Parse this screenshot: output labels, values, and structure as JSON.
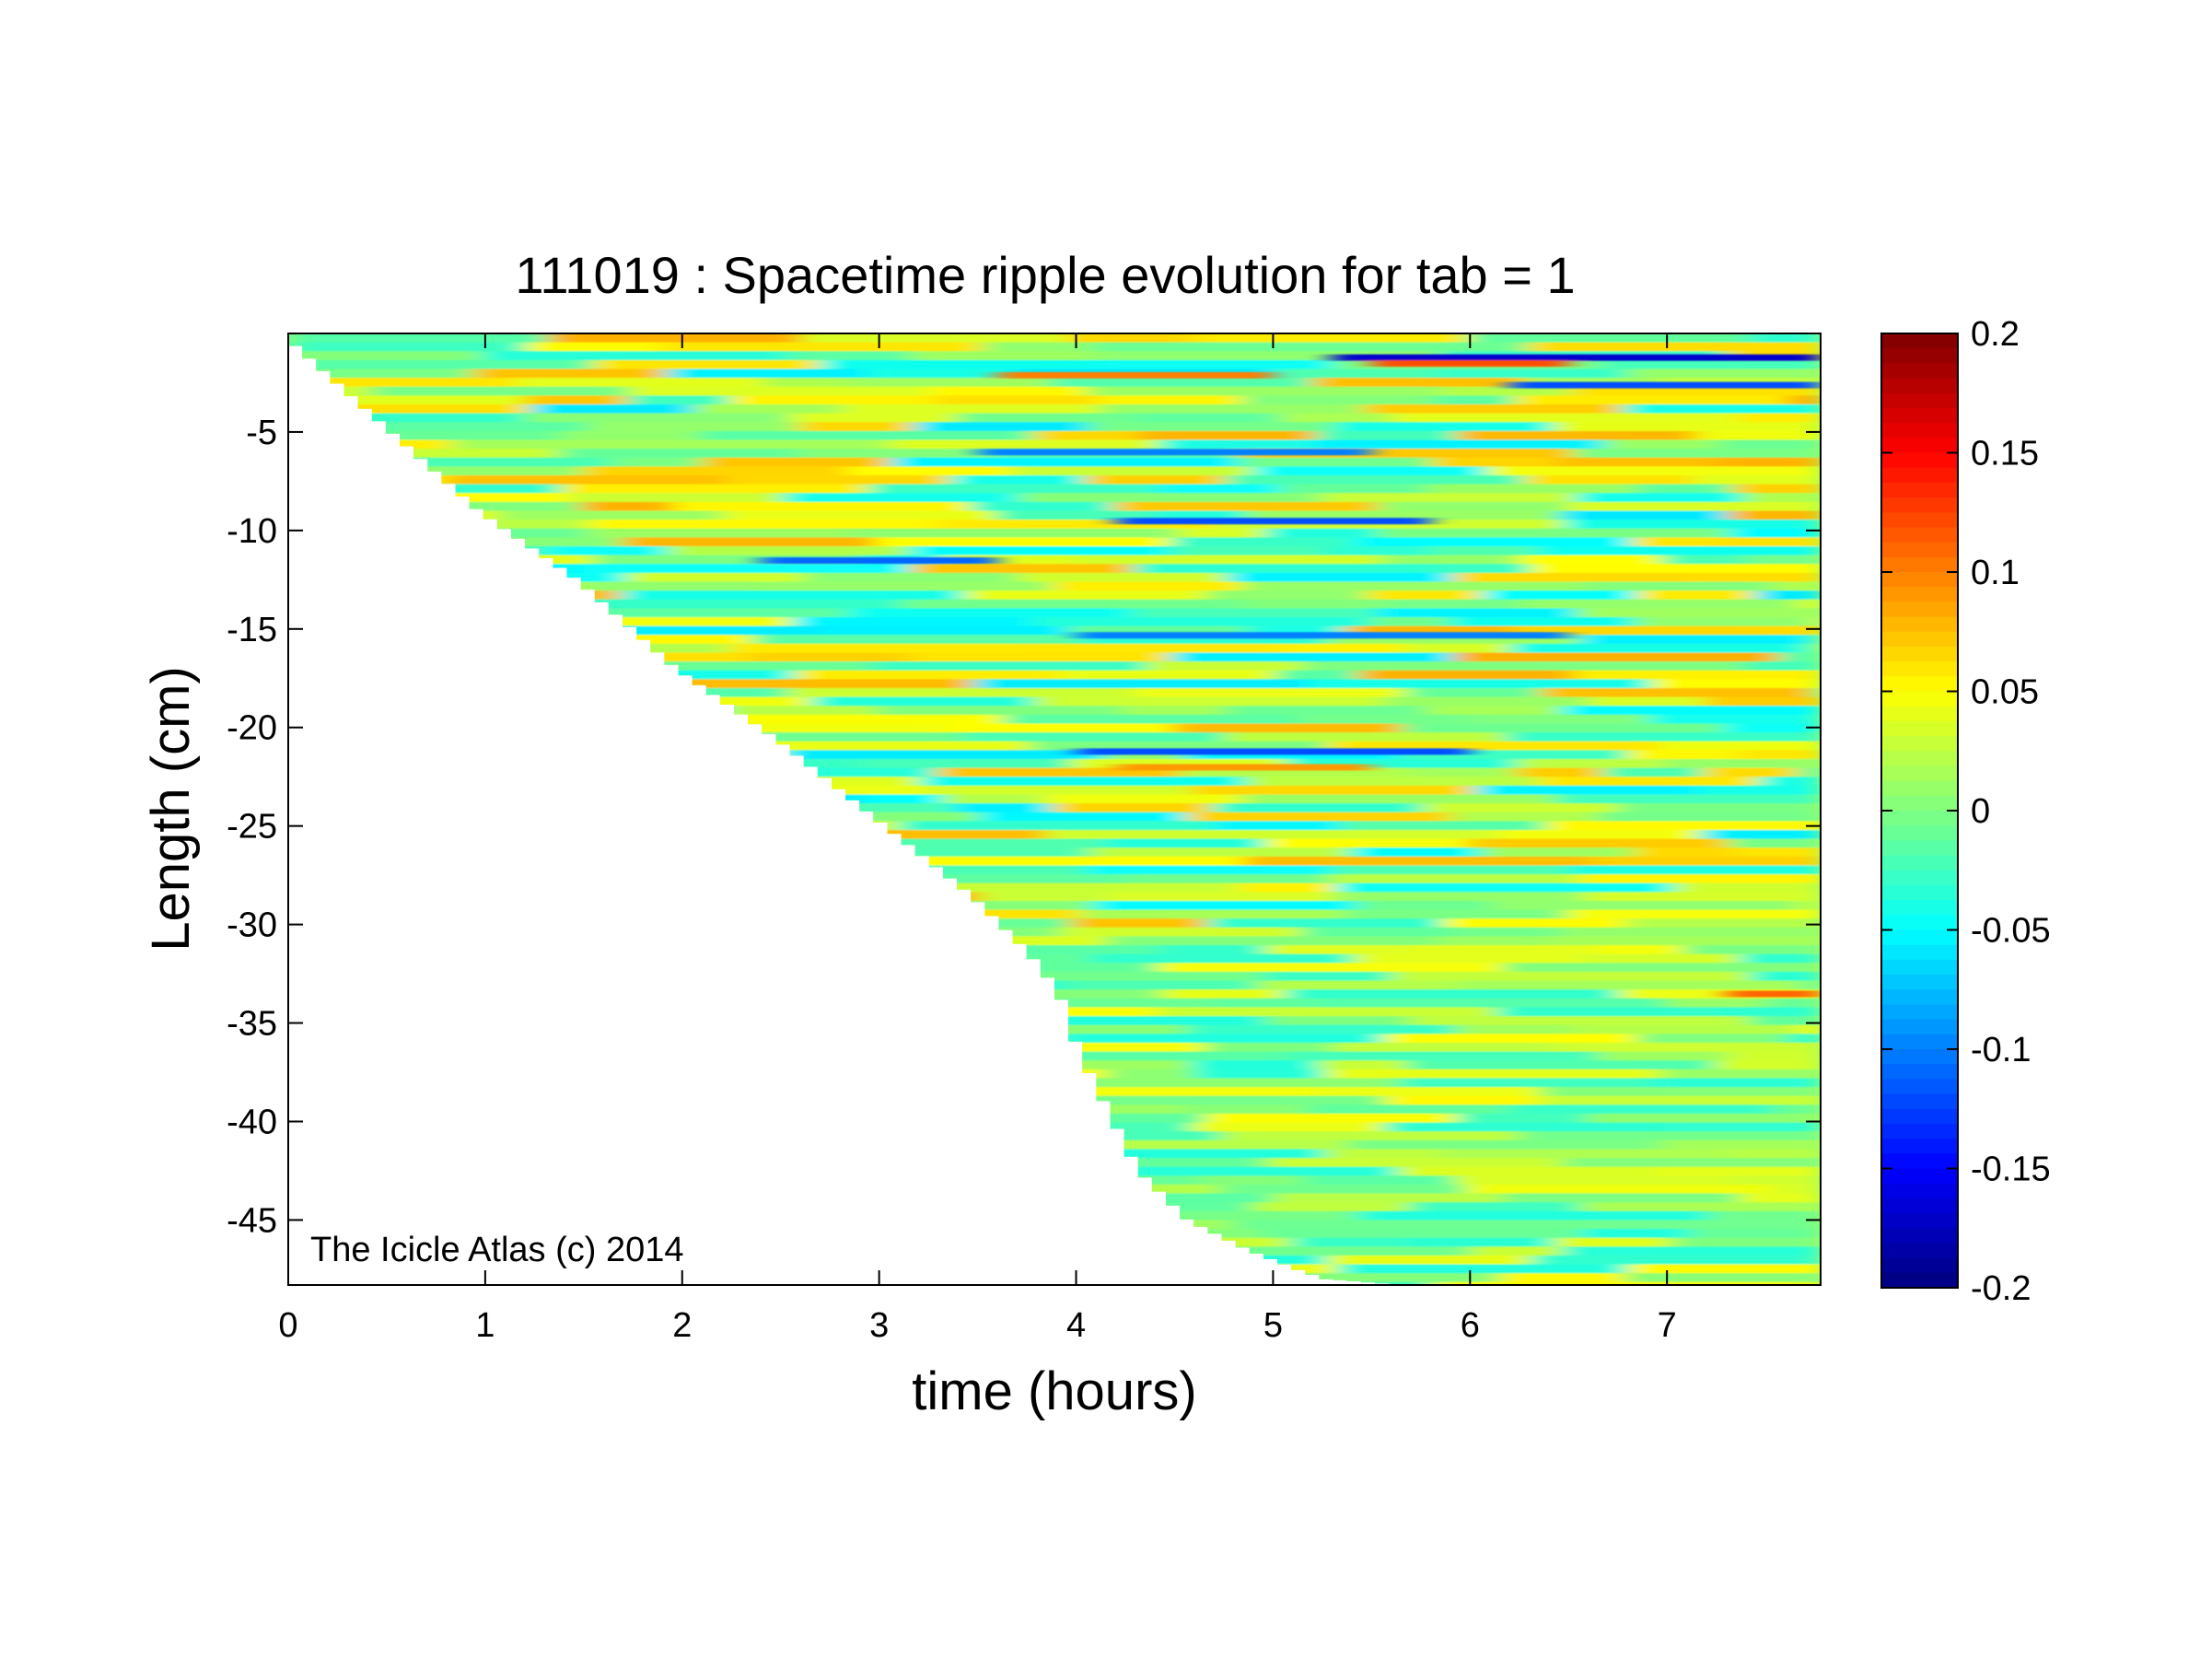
{
  "chart_data": {
    "type": "heatmap",
    "title": "111019 : Spacetime ripple evolution for tab = 1",
    "xlabel": "time (hours)",
    "ylabel": "Length (cm)",
    "xlim": [
      0,
      7.78
    ],
    "ylim": [
      -48.3,
      0
    ],
    "x_ticks": [
      0,
      1,
      2,
      3,
      4,
      5,
      6,
      7
    ],
    "x_tick_labels": [
      "0",
      "1",
      "2",
      "3",
      "4",
      "5",
      "6",
      "7"
    ],
    "y_ticks": [
      -5,
      -10,
      -15,
      -20,
      -25,
      -30,
      -35,
      -40,
      -45
    ],
    "y_tick_labels": [
      "-5",
      "-10",
      "-15",
      "-20",
      "-25",
      "-30",
      "-35",
      "-40",
      "-45"
    ],
    "colorbar": {
      "colormap": "jet",
      "clim": [
        -0.2,
        0.2
      ],
      "ticks": [
        0.2,
        0.15,
        0.1,
        0.05,
        0,
        -0.05,
        -0.1,
        -0.15,
        -0.2
      ],
      "tick_labels": [
        "0.2",
        "0.15",
        "0.1",
        "0.05",
        "0",
        "-0.05",
        "-0.1",
        "-0.15",
        "-0.2"
      ]
    },
    "data_boundary": {
      "description_of_values": "lowest length (cm) with data at each time (hours)",
      "time": [
        0,
        0.5,
        1,
        1.5,
        2,
        2.5,
        3,
        3.5,
        3.8,
        3.95,
        4.05,
        4.2,
        4.35,
        4.6,
        4.9,
        5.15,
        5.3,
        5.7,
        7.78
      ],
      "length": [
        0,
        -4.5,
        -9,
        -12.5,
        -17,
        -20.5,
        -24.5,
        -28.5,
        -31.5,
        -33.5,
        -36.5,
        -39.5,
        -42.5,
        -45,
        -46.5,
        -47.5,
        -48,
        -48.3,
        -48.3
      ]
    },
    "ripple_bands": [
      {
        "length": -1.2,
        "value": -0.17,
        "t_start": 5.3,
        "t_end": 7.78
      },
      {
        "length": -1.5,
        "value": 0.12,
        "t_start": 5.5,
        "t_end": 6.5
      },
      {
        "length": -2.1,
        "value": 0.1,
        "t_start": 3.6,
        "t_end": 5.0
      },
      {
        "length": -2.6,
        "value": -0.12,
        "t_start": 6.2,
        "t_end": 7.78
      },
      {
        "length": -6.0,
        "value": -0.1,
        "t_start": 3.5,
        "t_end": 5.5
      },
      {
        "length": -9.5,
        "value": -0.12,
        "t_start": 4.2,
        "t_end": 5.8
      },
      {
        "length": -11.5,
        "value": -0.11,
        "t_start": 2.4,
        "t_end": 3.6
      },
      {
        "length": -15.3,
        "value": -0.1,
        "t_start": 4.0,
        "t_end": 6.5
      },
      {
        "length": -21.2,
        "value": -0.12,
        "t_start": 4.0,
        "t_end": 6.0
      },
      {
        "length": -22.0,
        "value": 0.09,
        "t_start": 4.2,
        "t_end": 5.5
      },
      {
        "length": -33.5,
        "value": 0.11,
        "t_start": 7.3,
        "t_end": 7.78
      }
    ],
    "annotation": "The Icicle Atlas (c) 2014",
    "grid": false,
    "legend": "none"
  }
}
